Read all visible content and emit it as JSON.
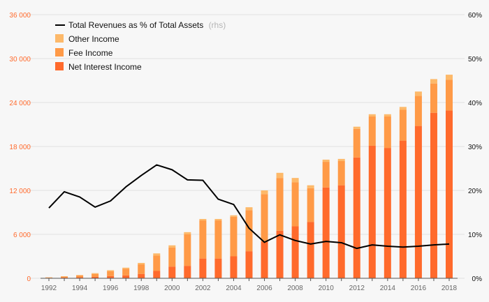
{
  "chart_data": {
    "type": "bar",
    "stacked": true,
    "categories": [
      "1992",
      "1993",
      "1994",
      "1995",
      "1996",
      "1997",
      "1998",
      "1999",
      "2000",
      "2001",
      "2002",
      "2003",
      "2004",
      "2005",
      "2006",
      "2007",
      "2008",
      "2009",
      "2010",
      "2011",
      "2012",
      "2013",
      "2014",
      "2015",
      "2016",
      "2017",
      "2018"
    ],
    "x_tick_labels": [
      "1992",
      "1994",
      "1996",
      "1998",
      "2000",
      "2002",
      "2004",
      "2006",
      "2008",
      "2010",
      "2012",
      "2014",
      "2016",
      "2018"
    ],
    "series": [
      {
        "name": "Net Interest Income",
        "color": "#ff6a2c",
        "axis": "left",
        "values": [
          60,
          100,
          150,
          200,
          300,
          400,
          600,
          1000,
          1600,
          1700,
          2700,
          2700,
          3000,
          3700,
          5000,
          6500,
          7100,
          7700,
          12400,
          12700,
          16500,
          18100,
          17800,
          18800,
          20800,
          22600,
          22900
        ]
      },
      {
        "name": "Fee Income",
        "color": "#ff9a47",
        "axis": "left",
        "values": [
          60,
          150,
          250,
          400,
          650,
          900,
          1300,
          2100,
          2600,
          4300,
          5200,
          5200,
          5400,
          5600,
          6500,
          7200,
          6000,
          4600,
          3500,
          3300,
          3900,
          4000,
          4300,
          4200,
          4100,
          4000,
          4200
        ]
      },
      {
        "name": "Other Income",
        "color": "#fdb96a",
        "axis": "left",
        "values": [
          20,
          30,
          50,
          100,
          150,
          150,
          200,
          300,
          300,
          300,
          200,
          200,
          200,
          400,
          500,
          700,
          600,
          400,
          300,
          300,
          300,
          300,
          300,
          400,
          600,
          600,
          700
        ]
      },
      {
        "name": "Total Revenues as % of Total Assets",
        "color": "#000000",
        "axis": "right",
        "type": "line",
        "values": [
          16,
          19.7,
          18.5,
          16.2,
          17.6,
          20.8,
          23.4,
          25.8,
          24.7,
          22.4,
          22.3,
          18,
          16.8,
          11.4,
          8.2,
          9.9,
          8.6,
          7.8,
          8.4,
          8.1,
          6.8,
          7.6,
          7.3,
          7.1,
          7.3,
          7.6,
          7.8
        ]
      }
    ],
    "y_left": {
      "ylim": [
        0,
        36000
      ],
      "ticks": [
        "0",
        "6 000",
        "12 000",
        "18 000",
        "24 000",
        "30 000",
        "36 000"
      ],
      "tick_values": [
        0,
        6000,
        12000,
        18000,
        24000,
        30000,
        36000
      ]
    },
    "y_right": {
      "ylim": [
        0,
        60
      ],
      "ticks": [
        "0%",
        "10%",
        "20%",
        "30%",
        "40%",
        "50%",
        "60%"
      ],
      "tick_values": [
        0,
        10,
        20,
        30,
        40,
        50,
        60
      ]
    },
    "legend": {
      "position": "top-left",
      "line_label": "Total Revenues as % of Total Assets",
      "line_note": "(rhs)",
      "items": [
        {
          "label": "Other Income",
          "color": "#fdb96a"
        },
        {
          "label": "Fee Income",
          "color": "#ff9a47"
        },
        {
          "label": "Net Interest Income",
          "color": "#ff6a2c"
        }
      ]
    },
    "grid": true,
    "title": "",
    "xlabel": "",
    "ylabel": ""
  }
}
